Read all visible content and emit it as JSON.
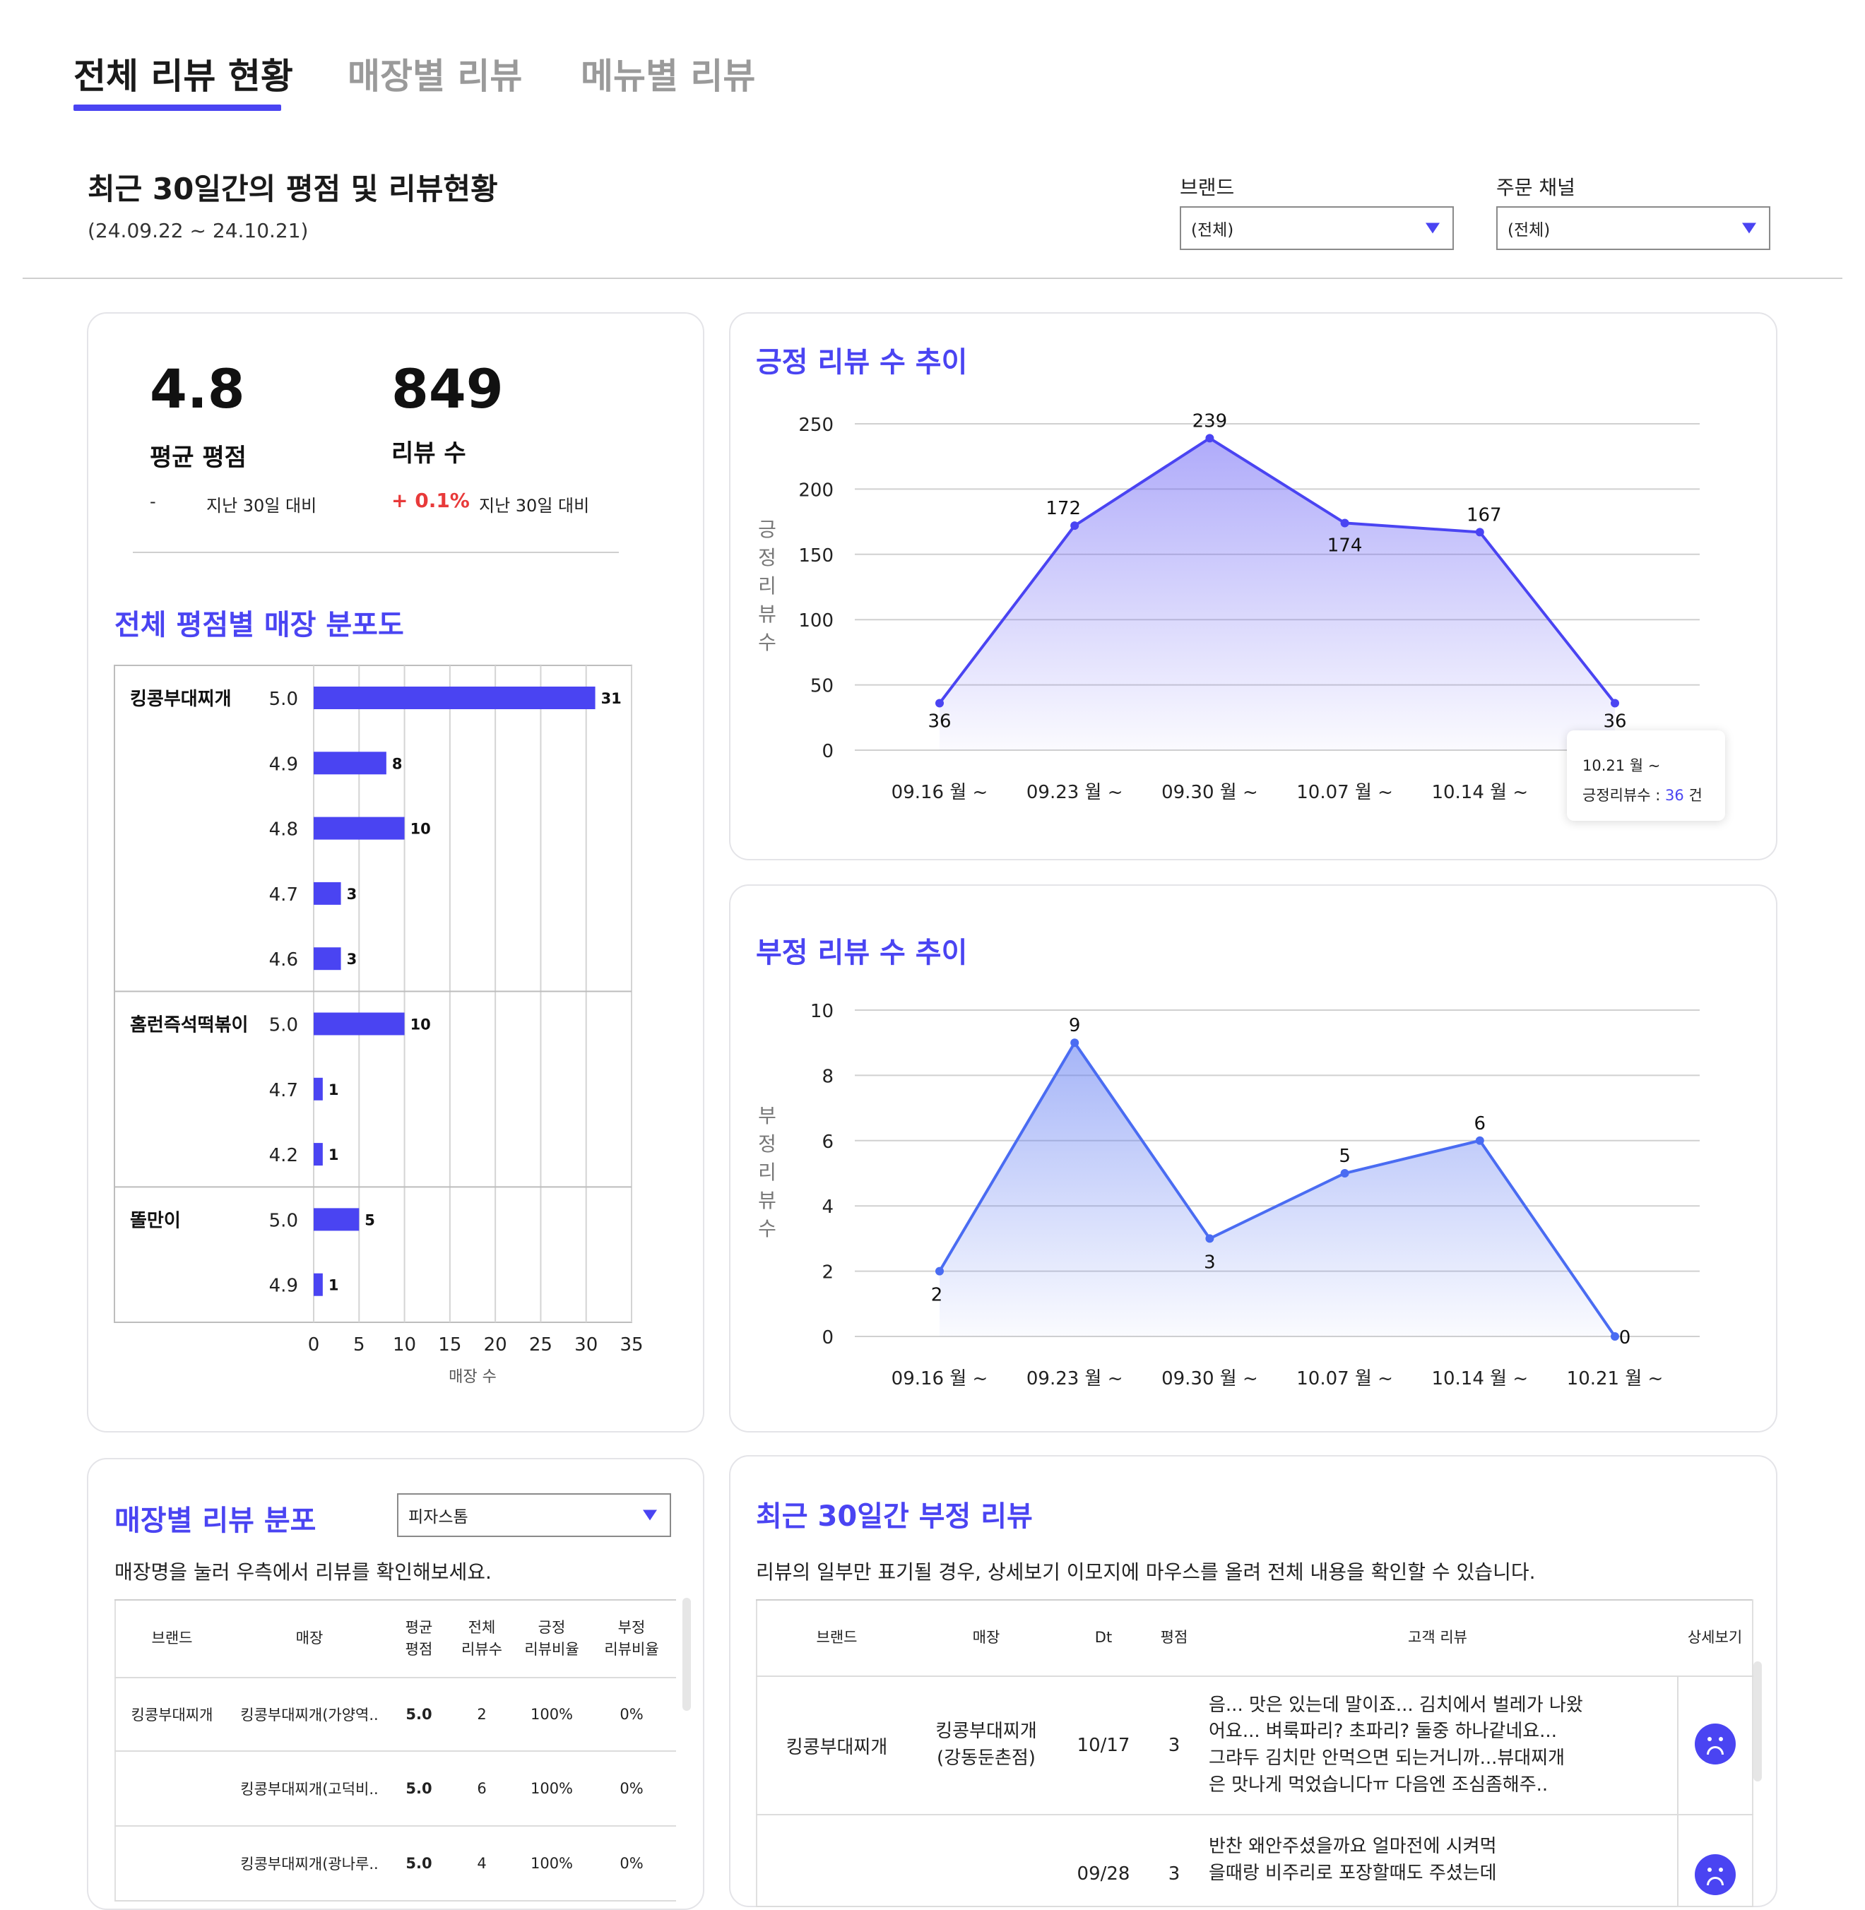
{
  "tabs": [
    {
      "label": "전체 리뷰 현황",
      "active": true
    },
    {
      "label": "매장별 리뷰",
      "active": false
    },
    {
      "label": "메뉴별 리뷰",
      "active": false
    }
  ],
  "header": {
    "title": "최근 30일간의 평점 및 리뷰현황",
    "date_range": "(24.09.22 ~ 24.10.21)"
  },
  "filters": {
    "brand": {
      "label": "브랜드",
      "value": "(전체)"
    },
    "channel": {
      "label": "주문 채널",
      "value": "(전체)"
    }
  },
  "summary": {
    "avg_rating": {
      "value": "4.8",
      "label": "평균 평점",
      "change": "-",
      "compare": "지난 30일 대비"
    },
    "review_count": {
      "value": "849",
      "label": "리뷰 수",
      "change": "+ 0.1%",
      "compare": "지난 30일 대비"
    }
  },
  "distribution": {
    "title": "전체 평점별 매장 분포도",
    "xlabel": "매장 수",
    "brands": [
      "킹콩부대찌개",
      "홈런즉석떡볶이",
      "똘만이"
    ]
  },
  "positive_trend": {
    "title": "긍정 리뷰 수 추이",
    "ylabel": "긍정리뷰수",
    "tooltip": {
      "date": "10.21 월 ~",
      "label": "긍정리뷰수 : ",
      "value": "36",
      "unit": " 건"
    }
  },
  "negative_trend": {
    "title": "부정 리뷰 수 추이",
    "ylabel": "부정리뷰수"
  },
  "chart_data": [
    {
      "type": "bar",
      "orientation": "horizontal",
      "title": "전체 평점별 매장 분포도",
      "xlabel": "매장 수",
      "xlim": [
        0,
        35
      ],
      "xticks": [
        0,
        5,
        10,
        15,
        20,
        25,
        30,
        35
      ],
      "groups": [
        {
          "brand": "킹콩부대찌개",
          "ratings": [
            "5.0",
            "4.9",
            "4.8",
            "4.7",
            "4.6"
          ],
          "values": [
            31,
            8,
            10,
            3,
            3
          ]
        },
        {
          "brand": "홈런즉석떡볶이",
          "ratings": [
            "5.0",
            "4.7",
            "4.2"
          ],
          "values": [
            10,
            1,
            1
          ]
        },
        {
          "brand": "똘만이",
          "ratings": [
            "5.0",
            "4.9"
          ],
          "values": [
            5,
            1
          ]
        }
      ],
      "color": "#4a44f2",
      "grid": true
    },
    {
      "type": "area",
      "title": "긍정 리뷰 수 추이",
      "ylabel": "긍정리뷰수",
      "x": [
        "09.16 월 ~",
        "09.23 월 ~",
        "09.30 월 ~",
        "10.07 월 ~",
        "10.14 월 ~",
        "10.21 월 ~"
      ],
      "values": [
        36,
        172,
        239,
        174,
        167,
        36
      ],
      "ylim": [
        0,
        250
      ],
      "yticks": [
        0,
        50,
        100,
        150,
        200,
        250
      ],
      "color": "#4a44f2"
    },
    {
      "type": "area",
      "title": "부정 리뷰 수 추이",
      "ylabel": "부정리뷰수",
      "x": [
        "09.16 월 ~",
        "09.23 월 ~",
        "09.30 월 ~",
        "10.07 월 ~",
        "10.14 월 ~",
        "10.21 월 ~"
      ],
      "values": [
        2,
        9,
        3,
        5,
        6,
        0
      ],
      "ylim": [
        0,
        10
      ],
      "yticks": [
        0,
        2,
        4,
        6,
        8,
        10
      ],
      "color": "#4a6cf2"
    }
  ],
  "store_dist": {
    "title": "매장별 리뷰 분포",
    "select_value": "피자스톰",
    "desc": "매장명을 눌러 우측에서 리뷰를 확인해보세요.",
    "columns": [
      "브랜드",
      "매장",
      "평균\n평점",
      "전체\n리뷰수",
      "긍정\n리뷰비율",
      "부정\n리뷰비율"
    ],
    "rows": [
      [
        "킹콩부대찌개",
        "킹콩부대찌개(가양역..",
        "5.0",
        "2",
        "100%",
        "0%"
      ],
      [
        "",
        "킹콩부대찌개(고덕비..",
        "5.0",
        "6",
        "100%",
        "0%"
      ],
      [
        "",
        "킹콩부대찌개(광나루..",
        "5.0",
        "4",
        "100%",
        "0%"
      ]
    ]
  },
  "neg_reviews": {
    "title": "최근 30일간 부정 리뷰",
    "desc": "리뷰의 일부만 표기될 경우, 상세보기 이모지에 마우스를 올려 전체 내용을 확인할 수 있습니다.",
    "columns": [
      "브랜드",
      "매장",
      "Dt",
      "평점",
      "고객 리뷰",
      "상세보기"
    ],
    "rows": [
      {
        "brand": "킹콩부대찌개",
        "store": "킹콩부대찌개\n(강동둔촌점)",
        "dt": "10/17",
        "rating": "3",
        "review": "음... 맛은 있는데 말이죠... 김치에서 벌레가 나왔\n어요... 벼룩파리? 초파리? 둘중 하나같네요...\n그랴두 김치만 안먹으면 되는거니까...뷰대찌개\n은 맛나게 먹었습니다ㅠ 다음엔 조심좀해주.."
      },
      {
        "brand": "",
        "store": "",
        "dt": "09/28",
        "rating": "3",
        "review": "반찬 왜안주셨을까요 얼마전에 시켜먹\n을때랑 비주리로 포장할때도 주셨는데"
      }
    ]
  }
}
